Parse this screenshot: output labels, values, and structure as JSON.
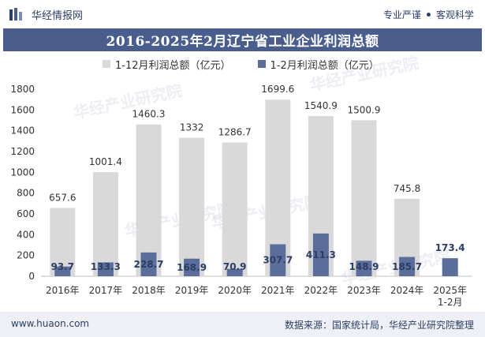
{
  "header": {
    "brand": "华经情报网",
    "slogan_left": "专业严谨",
    "slogan_right": "客观科学"
  },
  "title": "2016-2025年2月辽宁省工业企业利润总额",
  "footer": {
    "website": "www.huaon.com",
    "source": "数据来源：国家统计局，华经产业研究院整理"
  },
  "watermark_text": "华经产业研究院",
  "colors": {
    "title_bg": "#4a5e8e",
    "series_full_year": "#d9d9d9",
    "series_jan_feb": "#5b6e9b",
    "footer_bg": "#eef0f5"
  },
  "chart_data": {
    "type": "bar",
    "categories": [
      "2016年",
      "2017年",
      "2018年",
      "2019年",
      "2020年",
      "2021年",
      "2022年",
      "2023年",
      "2024年",
      "2025年\n1-2月"
    ],
    "series": [
      {
        "name": "1-12月利润总额（亿元）",
        "values": [
          657.6,
          1001.4,
          1460.3,
          1332,
          1286.7,
          1699.6,
          1540.9,
          1500.9,
          745.8,
          null
        ]
      },
      {
        "name": "1-2月利润总额（亿元）",
        "values": [
          93.7,
          133.3,
          228.7,
          168.9,
          70.9,
          307.7,
          411.3,
          148.9,
          185.7,
          173.4
        ]
      }
    ],
    "ylim": [
      0,
      1800
    ],
    "yticks": [
      0,
      200,
      400,
      600,
      800,
      1000,
      1200,
      1400,
      1600,
      1800
    ],
    "grid": false,
    "legend": "top"
  }
}
